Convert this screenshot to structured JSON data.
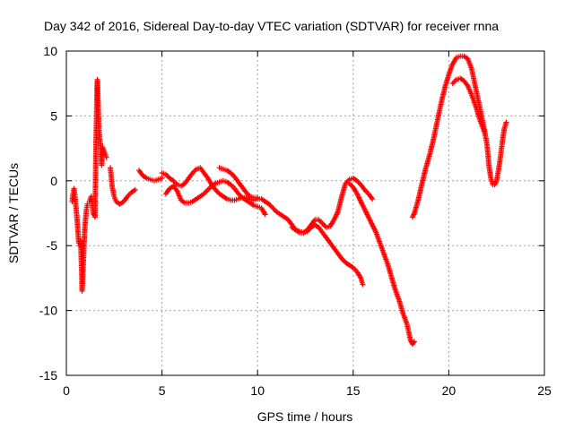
{
  "chart_data": {
    "type": "scatter",
    "title": "Day 342 of 2016, Sidereal Day-to-day VTEC variation (SDTVAR) for receiver rnna",
    "xlabel": "GPS time / hours",
    "ylabel": "SDTVAR / TECUs",
    "xlim": [
      0,
      25
    ],
    "ylim": [
      -15,
      10
    ],
    "xticks": [
      0,
      5,
      10,
      15,
      20,
      25
    ],
    "yticks": [
      -15,
      -10,
      -5,
      0,
      5,
      10
    ],
    "grid": true,
    "marker": "plus",
    "series": [
      {
        "name": "SDTVAR",
        "color": "#ff0000",
        "segments": [
          [
            [
              0.3,
              -1.6
            ],
            [
              0.35,
              -1.0
            ],
            [
              0.4,
              -0.6
            ],
            [
              0.45,
              -1.2
            ],
            [
              0.5,
              -2.0
            ],
            [
              0.55,
              -2.8
            ],
            [
              0.6,
              -3.8
            ],
            [
              0.65,
              -4.8
            ],
            [
              0.7,
              -5.0
            ],
            [
              0.75,
              -4.6
            ],
            [
              0.8,
              -7.0
            ],
            [
              0.82,
              -8.5
            ],
            [
              0.85,
              -7.8
            ],
            [
              0.9,
              -5.8
            ],
            [
              0.95,
              -4.0
            ],
            [
              1.0,
              -3.0
            ],
            [
              1.05,
              -2.2
            ],
            [
              1.1,
              -1.8
            ]
          ],
          [
            [
              1.2,
              -1.6
            ],
            [
              1.3,
              -1.2
            ],
            [
              1.35,
              -1.8
            ],
            [
              1.4,
              -2.5
            ],
            [
              1.5,
              -2.8
            ],
            [
              1.55,
              3.0
            ],
            [
              1.58,
              5.0
            ],
            [
              1.6,
              6.8
            ],
            [
              1.62,
              7.8
            ],
            [
              1.65,
              6.5
            ],
            [
              1.7,
              4.0
            ],
            [
              1.8,
              2.5
            ],
            [
              1.85,
              1.2
            ],
            [
              1.9,
              2.6
            ],
            [
              2.0,
              2.2
            ],
            [
              2.1,
              1.8
            ]
          ],
          [
            [
              2.3,
              1.0
            ],
            [
              2.4,
              -0.5
            ],
            [
              2.5,
              -1.2
            ],
            [
              2.6,
              -1.6
            ],
            [
              2.8,
              -1.8
            ],
            [
              3.0,
              -1.6
            ],
            [
              3.2,
              -1.2
            ],
            [
              3.4,
              -0.9
            ],
            [
              3.6,
              -0.7
            ]
          ],
          [
            [
              3.8,
              0.8
            ],
            [
              4.0,
              0.4
            ],
            [
              4.2,
              0.2
            ],
            [
              4.4,
              0.1
            ],
            [
              4.6,
              0.0
            ],
            [
              4.8,
              0.1
            ],
            [
              5.0,
              0.2
            ]
          ],
          [
            [
              5.0,
              0.6
            ],
            [
              5.2,
              0.5
            ],
            [
              5.4,
              0.2
            ],
            [
              5.6,
              0.0
            ],
            [
              5.8,
              -0.3
            ],
            [
              6.0,
              -0.4
            ],
            [
              6.2,
              -0.2
            ],
            [
              6.4,
              0.2
            ],
            [
              6.6,
              0.6
            ],
            [
              6.8,
              0.9
            ],
            [
              7.0,
              1.0
            ],
            [
              7.2,
              0.6
            ],
            [
              7.4,
              0.2
            ],
            [
              7.6,
              -0.3
            ],
            [
              7.8,
              -0.7
            ],
            [
              8.0,
              -1.0
            ],
            [
              8.2,
              -1.2
            ],
            [
              8.4,
              -1.4
            ],
            [
              8.6,
              -1.5
            ],
            [
              8.8,
              -1.5
            ],
            [
              9.0,
              -1.4
            ],
            [
              9.2,
              -1.3
            ],
            [
              9.4,
              -1.3
            ],
            [
              9.6,
              -1.4
            ],
            [
              9.8,
              -1.5
            ],
            [
              10.0,
              -1.4
            ],
            [
              10.2,
              -1.4
            ],
            [
              10.4,
              -1.6
            ],
            [
              10.6,
              -1.8
            ],
            [
              10.8,
              -2.1
            ],
            [
              11.0,
              -2.4
            ],
            [
              11.2,
              -2.6
            ],
            [
              11.4,
              -2.8
            ],
            [
              11.6,
              -3.0
            ],
            [
              11.8,
              -3.4
            ],
            [
              12.0,
              -3.8
            ],
            [
              12.2,
              -4.0
            ],
            [
              12.4,
              -4.0
            ],
            [
              12.6,
              -3.8
            ],
            [
              12.8,
              -3.4
            ],
            [
              13.0,
              -3.0
            ],
            [
              13.2,
              -3.0
            ],
            [
              13.4,
              -3.3
            ],
            [
              13.6,
              -3.6
            ],
            [
              13.8,
              -3.5
            ],
            [
              14.0,
              -3.0
            ],
            [
              14.2,
              -2.4
            ],
            [
              14.4,
              -1.2
            ],
            [
              14.6,
              -0.2
            ],
            [
              14.8,
              0.1
            ],
            [
              15.0,
              0.2
            ],
            [
              15.2,
              0.0
            ],
            [
              15.4,
              -0.3
            ],
            [
              15.6,
              -0.7
            ],
            [
              15.8,
              -1.0
            ],
            [
              16.0,
              -1.4
            ]
          ],
          [
            [
              5.2,
              -1.0
            ],
            [
              5.4,
              -0.6
            ],
            [
              5.6,
              -0.4
            ],
            [
              5.8,
              -0.8
            ],
            [
              6.0,
              -1.5
            ],
            [
              6.2,
              -1.7
            ],
            [
              6.4,
              -1.7
            ],
            [
              6.6,
              -1.6
            ],
            [
              6.8,
              -1.4
            ],
            [
              7.0,
              -1.2
            ],
            [
              7.2,
              -1.0
            ],
            [
              7.4,
              -0.7
            ],
            [
              7.6,
              -0.4
            ],
            [
              7.8,
              -0.2
            ],
            [
              8.0,
              -0.1
            ],
            [
              8.2,
              0.0
            ],
            [
              8.4,
              -0.1
            ],
            [
              8.6,
              -0.3
            ],
            [
              8.8,
              -0.6
            ],
            [
              9.0,
              -1.0
            ],
            [
              9.2,
              -1.3
            ],
            [
              9.4,
              -1.5
            ],
            [
              9.6,
              -1.7
            ],
            [
              9.8,
              -1.9
            ],
            [
              10.0,
              -2.0
            ],
            [
              10.2,
              -2.1
            ],
            [
              10.4,
              -2.6
            ]
          ],
          [
            [
              8.0,
              1.0
            ],
            [
              8.2,
              0.9
            ],
            [
              8.4,
              0.8
            ],
            [
              8.6,
              0.6
            ],
            [
              8.8,
              0.3
            ],
            [
              9.0,
              -0.1
            ],
            [
              9.2,
              -0.5
            ],
            [
              9.4,
              -0.9
            ],
            [
              9.6,
              -1.2
            ],
            [
              9.8,
              -1.3
            ],
            [
              10.0,
              -1.3
            ]
          ],
          [
            [
              11.8,
              -3.6
            ],
            [
              12.0,
              -3.8
            ],
            [
              12.2,
              -3.9
            ],
            [
              12.4,
              -4.0
            ],
            [
              12.6,
              -3.9
            ],
            [
              12.8,
              -3.6
            ],
            [
              13.0,
              -3.4
            ],
            [
              13.2,
              -3.6
            ],
            [
              13.4,
              -4.0
            ],
            [
              13.6,
              -4.4
            ],
            [
              13.8,
              -4.8
            ],
            [
              14.0,
              -5.2
            ],
            [
              14.2,
              -5.6
            ],
            [
              14.4,
              -6.0
            ],
            [
              14.6,
              -6.3
            ],
            [
              14.8,
              -6.5
            ],
            [
              15.0,
              -6.7
            ],
            [
              15.2,
              -7.0
            ],
            [
              15.4,
              -7.5
            ],
            [
              15.5,
              -8.0
            ]
          ],
          [
            [
              14.8,
              -0.2
            ],
            [
              15.0,
              -0.5
            ],
            [
              15.2,
              -1.0
            ],
            [
              15.4,
              -1.6
            ],
            [
              15.6,
              -2.2
            ],
            [
              15.8,
              -2.8
            ],
            [
              16.0,
              -3.4
            ],
            [
              16.2,
              -4.0
            ],
            [
              16.4,
              -4.8
            ],
            [
              16.6,
              -5.6
            ],
            [
              16.8,
              -6.4
            ],
            [
              17.0,
              -7.4
            ],
            [
              17.2,
              -8.4
            ],
            [
              17.4,
              -9.2
            ],
            [
              17.6,
              -10.2
            ],
            [
              17.8,
              -11.0
            ],
            [
              17.9,
              -11.6
            ],
            [
              18.0,
              -12.3
            ],
            [
              18.1,
              -12.6
            ],
            [
              18.2,
              -12.4
            ]
          ],
          [
            [
              18.1,
              -2.8
            ],
            [
              18.2,
              -2.5
            ],
            [
              18.4,
              -1.5
            ],
            [
              18.6,
              -0.2
            ],
            [
              18.8,
              1.0
            ],
            [
              19.0,
              2.0
            ],
            [
              19.2,
              3.2
            ],
            [
              19.4,
              4.6
            ],
            [
              19.6,
              6.0
            ],
            [
              19.8,
              7.2
            ],
            [
              20.0,
              8.2
            ],
            [
              20.2,
              9.0
            ],
            [
              20.4,
              9.5
            ],
            [
              20.6,
              9.6
            ],
            [
              20.8,
              9.6
            ],
            [
              21.0,
              9.4
            ],
            [
              21.2,
              8.6
            ],
            [
              21.4,
              7.2
            ],
            [
              21.6,
              5.8
            ],
            [
              21.8,
              4.4
            ],
            [
              22.0,
              2.8
            ],
            [
              22.1,
              1.2
            ],
            [
              22.2,
              0.2
            ],
            [
              22.3,
              -0.3
            ],
            [
              22.4,
              -0.3
            ],
            [
              22.5,
              0.0
            ],
            [
              22.6,
              0.8
            ],
            [
              22.7,
              1.8
            ],
            [
              22.8,
              3.0
            ],
            [
              22.9,
              4.0
            ],
            [
              23.0,
              4.5
            ]
          ],
          [
            [
              20.2,
              7.5
            ],
            [
              20.4,
              7.8
            ],
            [
              20.6,
              7.9
            ],
            [
              20.8,
              7.7
            ],
            [
              21.0,
              7.3
            ],
            [
              21.2,
              6.6
            ],
            [
              21.4,
              5.8
            ],
            [
              21.6,
              4.8
            ],
            [
              21.8,
              4.0
            ],
            [
              21.9,
              3.6
            ]
          ]
        ]
      }
    ]
  }
}
